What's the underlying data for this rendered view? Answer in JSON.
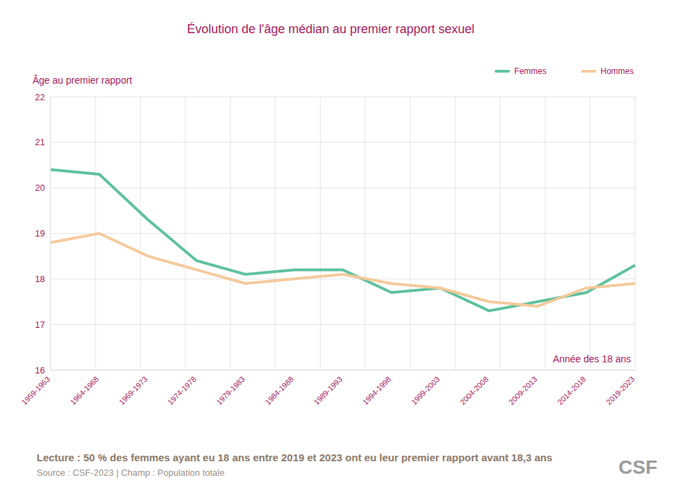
{
  "chart_data": {
    "type": "line",
    "title": "Évolution de l'âge médian au premier rapport sexuel",
    "y_label": "Âge au premier rapport",
    "x_label": "Année des 18 ans",
    "categories": [
      "1959-1963",
      "1964-1968",
      "1969-1973",
      "1974-1978",
      "1979-1983",
      "1984-1988",
      "1989-1993",
      "1994-1998",
      "1999-2003",
      "2004-2008",
      "2009-2013",
      "2014-2018",
      "2019-2023"
    ],
    "series": [
      {
        "name": "Femmes",
        "color": "#5cc19c",
        "values": [
          20.4,
          20.3,
          19.3,
          18.4,
          18.1,
          18.2,
          18.2,
          17.7,
          17.8,
          17.3,
          17.5,
          17.7,
          18.3
        ]
      },
      {
        "name": "Hommes",
        "color": "#f5c99a",
        "values": [
          18.8,
          19.0,
          18.5,
          18.2,
          17.9,
          18.0,
          18.1,
          17.9,
          17.8,
          17.5,
          17.4,
          17.8,
          17.9
        ]
      }
    ],
    "ylim": [
      16,
      22
    ],
    "yticks": [
      16,
      17,
      18,
      19,
      20,
      21,
      22
    ],
    "grid": true,
    "legend": "top right",
    "note": "Lecture : 50 % des femmes ayant eu 18 ans entre 2019 et 2023 ont eu leur premier rapport avant 18,3 ans",
    "source": "Source : CSF-2023  |  Champ : Population totale",
    "logo": "CSF"
  }
}
